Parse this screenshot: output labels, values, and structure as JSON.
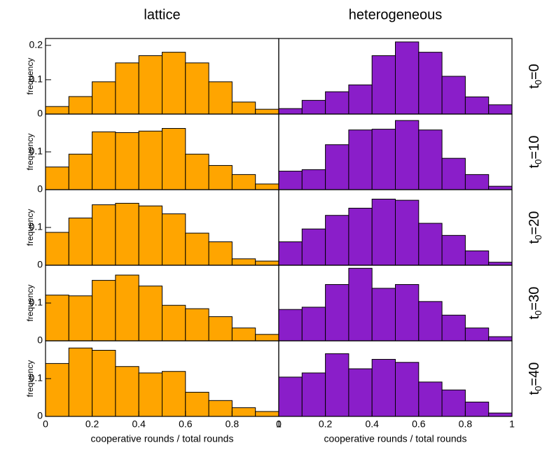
{
  "chart_data": [
    {
      "type": "histogram",
      "title": "lattice",
      "ylabel": "frequency",
      "bins": [
        0,
        0.1,
        0.2,
        0.3,
        0.4,
        0.5,
        0.6,
        0.7,
        0.8,
        0.9,
        1
      ],
      "values": [
        0.022,
        0.051,
        0.094,
        0.149,
        0.17,
        0.18,
        0.149,
        0.094,
        0.035,
        0.014
      ],
      "color": "#ffa500",
      "xlim": [
        0,
        1
      ],
      "ylim": [
        0,
        0.22
      ],
      "yticks": [
        0,
        0.1,
        0.2
      ]
    },
    {
      "type": "histogram",
      "title": "heterogeneous",
      "row_label": [
        "t",
        "0",
        "=0"
      ],
      "bins": [
        0,
        0.1,
        0.2,
        0.3,
        0.4,
        0.5,
        0.6,
        0.7,
        0.8,
        0.9,
        1
      ],
      "values": [
        0.016,
        0.04,
        0.065,
        0.085,
        0.17,
        0.21,
        0.18,
        0.11,
        0.05,
        0.027
      ],
      "color": "#8a1ec9",
      "xlim": [
        0,
        1
      ],
      "ylim": [
        0,
        0.22
      ]
    },
    {
      "type": "histogram",
      "ylabel": "frequency",
      "bins": [
        0,
        0.1,
        0.2,
        0.3,
        0.4,
        0.5,
        0.6,
        0.7,
        0.8,
        0.9,
        1
      ],
      "values": [
        0.06,
        0.094,
        0.153,
        0.151,
        0.155,
        0.162,
        0.094,
        0.064,
        0.04,
        0.015
      ],
      "color": "#ffa500",
      "xlim": [
        0,
        1
      ],
      "ylim": [
        0,
        0.2
      ],
      "yticks": [
        0,
        0.1
      ]
    },
    {
      "type": "histogram",
      "row_label": [
        "t",
        "0",
        "=10"
      ],
      "bins": [
        0,
        0.1,
        0.2,
        0.3,
        0.4,
        0.5,
        0.6,
        0.7,
        0.8,
        0.9,
        1
      ],
      "values": [
        0.049,
        0.053,
        0.119,
        0.158,
        0.16,
        0.183,
        0.158,
        0.083,
        0.04,
        0.009
      ],
      "color": "#8a1ec9",
      "xlim": [
        0,
        1
      ],
      "ylim": [
        0,
        0.2
      ]
    },
    {
      "type": "histogram",
      "ylabel": "frequency",
      "bins": [
        0,
        0.1,
        0.2,
        0.3,
        0.4,
        0.5,
        0.6,
        0.7,
        0.8,
        0.9,
        1
      ],
      "values": [
        0.087,
        0.125,
        0.16,
        0.164,
        0.157,
        0.136,
        0.085,
        0.062,
        0.017,
        0.011
      ],
      "color": "#ffa500",
      "xlim": [
        0,
        1
      ],
      "ylim": [
        0,
        0.2
      ],
      "yticks": [
        0,
        0.1
      ]
    },
    {
      "type": "histogram",
      "row_label": [
        "t",
        "0",
        "=20"
      ],
      "bins": [
        0,
        0.1,
        0.2,
        0.3,
        0.4,
        0.5,
        0.6,
        0.7,
        0.8,
        0.9,
        1
      ],
      "values": [
        0.062,
        0.096,
        0.132,
        0.151,
        0.175,
        0.172,
        0.111,
        0.079,
        0.038,
        0.008
      ],
      "color": "#8a1ec9",
      "xlim": [
        0,
        1
      ],
      "ylim": [
        0,
        0.2
      ]
    },
    {
      "type": "histogram",
      "ylabel": "frequency",
      "bins": [
        0,
        0.1,
        0.2,
        0.3,
        0.4,
        0.5,
        0.6,
        0.7,
        0.8,
        0.9,
        1
      ],
      "values": [
        0.121,
        0.119,
        0.16,
        0.174,
        0.145,
        0.094,
        0.085,
        0.064,
        0.034,
        0.017
      ],
      "color": "#ffa500",
      "xlim": [
        0,
        1
      ],
      "ylim": [
        0,
        0.2
      ],
      "yticks": [
        0,
        0.1
      ]
    },
    {
      "type": "histogram",
      "row_label": [
        "t",
        "0",
        "=30"
      ],
      "bins": [
        0,
        0.1,
        0.2,
        0.3,
        0.4,
        0.5,
        0.6,
        0.7,
        0.8,
        0.9,
        1
      ],
      "values": [
        0.083,
        0.089,
        0.149,
        0.192,
        0.139,
        0.149,
        0.104,
        0.068,
        0.034,
        0.011
      ],
      "color": "#8a1ec9",
      "xlim": [
        0,
        1
      ],
      "ylim": [
        0,
        0.2
      ]
    },
    {
      "type": "histogram",
      "ylabel": "frequency",
      "xlabel": "cooperative rounds / total rounds",
      "bins": [
        0,
        0.1,
        0.2,
        0.3,
        0.4,
        0.5,
        0.6,
        0.7,
        0.8,
        0.9,
        1
      ],
      "values": [
        0.14,
        0.181,
        0.175,
        0.132,
        0.115,
        0.119,
        0.064,
        0.042,
        0.023,
        0.013
      ],
      "color": "#ffa500",
      "xlim": [
        0,
        1
      ],
      "ylim": [
        0,
        0.2
      ],
      "yticks": [
        0,
        0.1
      ],
      "xticks": [
        0,
        0.2,
        0.4,
        0.6,
        0.8,
        1
      ]
    },
    {
      "type": "histogram",
      "row_label": [
        "t",
        "0",
        "=40"
      ],
      "xlabel": "cooperative rounds / total rounds",
      "bins": [
        0,
        0.1,
        0.2,
        0.3,
        0.4,
        0.5,
        0.6,
        0.7,
        0.8,
        0.9,
        1
      ],
      "values": [
        0.104,
        0.115,
        0.166,
        0.126,
        0.151,
        0.143,
        0.091,
        0.07,
        0.038,
        0.009
      ],
      "color": "#8a1ec9",
      "xlim": [
        0,
        1
      ],
      "ylim": [
        0,
        0.2
      ],
      "xticks": [
        0,
        0.2,
        0.4,
        0.6,
        0.8,
        1
      ]
    }
  ]
}
